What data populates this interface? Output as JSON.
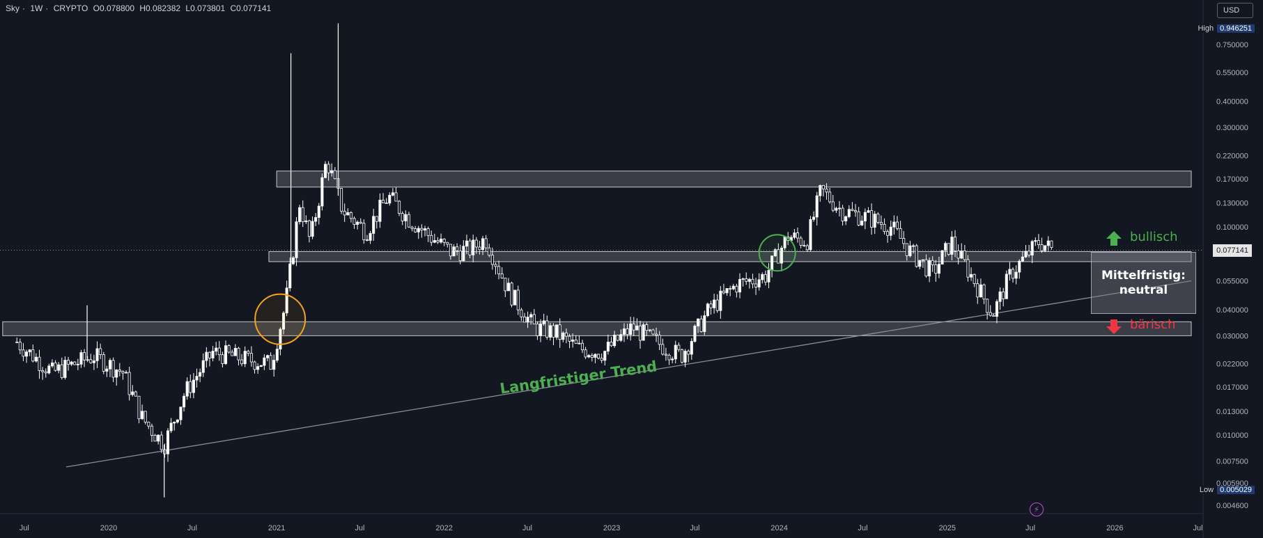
{
  "legend": {
    "symbol": "Sky",
    "interval": "1W",
    "exchange": "CRYPTO",
    "open": "O0.078800",
    "high": "H0.082382",
    "low": "L0.073801",
    "close": "C0.077141",
    "separator": "·"
  },
  "currency": "USD",
  "high_tag": {
    "label": "High",
    "value": "0.946251"
  },
  "low_tag": {
    "label": "Low",
    "value": "0.005029"
  },
  "last_price": "0.077141",
  "annotations": {
    "bullish": "bullisch",
    "bearish": "bärisch",
    "status_line1": "Mittelfristig:",
    "status_line2": "neutral",
    "trend": "Langfristiger Trend"
  },
  "colors": {
    "background": "#131722",
    "candle": "#ffffff",
    "zone": "#c8c8c8",
    "orange_circle": "#f7a21b",
    "green_circle": "#4caf50",
    "bullish": "#4caf50",
    "bearish": "#f23645"
  },
  "chart_data": {
    "type": "candlestick",
    "scale": "log",
    "y_range": [
      0.0044,
      1.05
    ],
    "x_range": [
      "2019-06-01",
      "2026-08-01"
    ],
    "y_ticks": [
      "0.750000",
      "0.550000",
      "0.400000",
      "0.300000",
      "0.220000",
      "0.170000",
      "0.130000",
      "0.100000",
      "0.055000",
      "0.040000",
      "0.030000",
      "0.022000",
      "0.017000",
      "0.013000",
      "0.010000",
      "0.007500",
      "0.005900",
      "0.004600"
    ],
    "x_ticks": [
      {
        "label": "Jul",
        "date": "2019-07-01"
      },
      {
        "label": "2020",
        "date": "2020-01-01"
      },
      {
        "label": "Jul",
        "date": "2020-07-01"
      },
      {
        "label": "2021",
        "date": "2021-01-01"
      },
      {
        "label": "Jul",
        "date": "2021-07-01"
      },
      {
        "label": "2022",
        "date": "2022-01-01"
      },
      {
        "label": "Jul",
        "date": "2022-07-01"
      },
      {
        "label": "2023",
        "date": "2023-01-01"
      },
      {
        "label": "Jul",
        "date": "2023-07-01"
      },
      {
        "label": "2024",
        "date": "2024-01-01"
      },
      {
        "label": "Jul",
        "date": "2024-07-01"
      },
      {
        "label": "2025",
        "date": "2025-01-01"
      },
      {
        "label": "Jul",
        "date": "2025-07-01"
      },
      {
        "label": "2026",
        "date": "2026-01-01"
      },
      {
        "label": "Jul",
        "date": "2026-07-01"
      }
    ],
    "path": [
      [
        "2019-06-15",
        0.028
      ],
      [
        "2019-09-01",
        0.02
      ],
      [
        "2019-12-01",
        0.024
      ],
      [
        "2020-02-01",
        0.02
      ],
      [
        "2020-03-15",
        0.012
      ],
      [
        "2020-05-01",
        0.009
      ],
      [
        "2020-06-15",
        0.016
      ],
      [
        "2020-08-15",
        0.025
      ],
      [
        "2020-11-01",
        0.023
      ],
      [
        "2020-12-20",
        0.022
      ],
      [
        "2021-01-20",
        0.042
      ],
      [
        "2021-02-20",
        0.13
      ],
      [
        "2021-03-15",
        0.085
      ],
      [
        "2021-04-20",
        0.21
      ],
      [
        "2021-05-25",
        0.12
      ],
      [
        "2021-07-15",
        0.095
      ],
      [
        "2021-09-01",
        0.14
      ],
      [
        "2021-10-15",
        0.11
      ],
      [
        "2021-12-01",
        0.09
      ],
      [
        "2022-01-15",
        0.076
      ],
      [
        "2022-03-01",
        0.078
      ],
      [
        "2022-04-01",
        0.088
      ],
      [
        "2022-05-20",
        0.05
      ],
      [
        "2022-07-15",
        0.033
      ],
      [
        "2022-09-01",
        0.031
      ],
      [
        "2022-10-20",
        0.026
      ],
      [
        "2022-12-15",
        0.025
      ],
      [
        "2023-02-15",
        0.033
      ],
      [
        "2023-04-20",
        0.027
      ],
      [
        "2023-06-01",
        0.024
      ],
      [
        "2023-08-01",
        0.04
      ],
      [
        "2023-10-01",
        0.053
      ],
      [
        "2023-12-01",
        0.058
      ],
      [
        "2024-01-20",
        0.09
      ],
      [
        "2024-03-01",
        0.085
      ],
      [
        "2024-04-01",
        0.15
      ],
      [
        "2024-05-15",
        0.12
      ],
      [
        "2024-07-15",
        0.11
      ],
      [
        "2024-09-01",
        0.1
      ],
      [
        "2024-10-15",
        0.075
      ],
      [
        "2024-12-01",
        0.06
      ],
      [
        "2025-01-10",
        0.085
      ],
      [
        "2025-03-01",
        0.055
      ],
      [
        "2025-04-10",
        0.038
      ],
      [
        "2025-05-20",
        0.06
      ],
      [
        "2025-07-20",
        0.085
      ],
      [
        "2025-08-20",
        0.077
      ]
    ],
    "spikes": [
      {
        "date": "2021-02-01",
        "high": 0.68
      },
      {
        "date": "2021-05-15",
        "high": 0.946251
      },
      {
        "date": "2020-05-01",
        "low": 0.005029
      },
      {
        "date": "2019-11-15",
        "high": 0.042
      }
    ],
    "zones": [
      {
        "from": "2021-01-01",
        "to": "2026-08-01",
        "low": 0.155,
        "high": 0.185
      },
      {
        "from": "2020-12-15",
        "to": "2026-08-01",
        "low": 0.068,
        "high": 0.076
      },
      {
        "from": "2019-05-15",
        "to": "2026-08-01",
        "low": 0.03,
        "high": 0.035
      }
    ],
    "trend_line": [
      {
        "date": "2019-06-01",
        "value": 0.0069
      },
      {
        "date": "2026-08-01",
        "value": 0.055
      }
    ],
    "circles": [
      {
        "date": "2021-01-01",
        "value": 0.036,
        "color": "orange"
      },
      {
        "date": "2023-12-20",
        "value": 0.075,
        "color": "green"
      }
    ]
  }
}
